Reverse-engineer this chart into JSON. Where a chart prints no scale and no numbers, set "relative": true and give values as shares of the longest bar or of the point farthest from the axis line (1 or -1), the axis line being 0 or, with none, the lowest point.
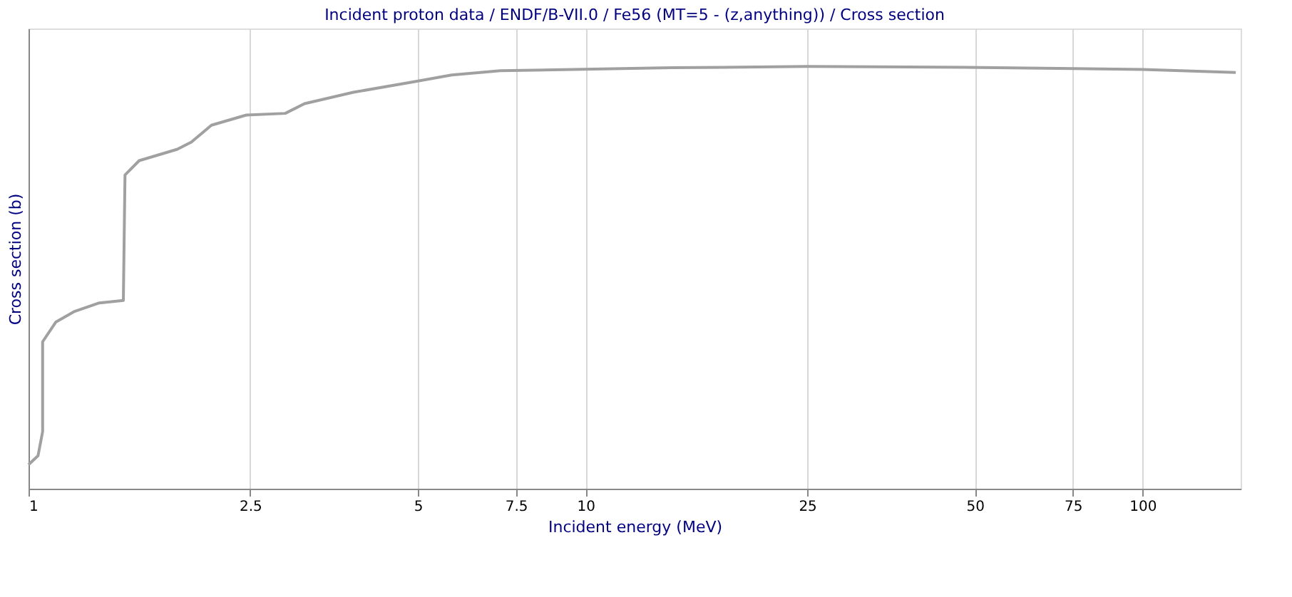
{
  "chart_data": {
    "type": "line",
    "title": "Incident proton data / ENDF/B-VII.0 / Fe56 (MT=5 - (z,anything)) / Cross section",
    "xlabel": "Incident energy (MeV)",
    "ylabel": "Cross section (b)",
    "relative": true,
    "log": "x",
    "xlim": [
      1,
      150
    ],
    "xticks": [
      1,
      2.5,
      5,
      7.5,
      10,
      25,
      50,
      75,
      100
    ],
    "grid": "x",
    "tick_labels": "x",
    "marker": "none",
    "line_style": "solid",
    "series": [
      {
        "color": "#a0a0a0",
        "x": [
          1.0,
          1.04,
          1.06,
          1.06,
          1.12,
          1.21,
          1.34,
          1.48,
          1.49,
          1.58,
          1.85,
          1.96,
          2.13,
          2.46,
          2.89,
          3.13,
          3.83,
          4.88,
          5.75,
          7.03,
          9.5,
          14.3,
          25,
          48,
          100,
          147
        ],
        "values": [
          0.057,
          0.078,
          0.135,
          0.348,
          0.395,
          0.42,
          0.44,
          0.446,
          0.743,
          0.777,
          0.804,
          0.821,
          0.861,
          0.885,
          0.889,
          0.912,
          0.939,
          0.963,
          0.98,
          0.99,
          0.993,
          0.997,
          1.0,
          0.998,
          0.993,
          0.986
        ]
      }
    ]
  }
}
